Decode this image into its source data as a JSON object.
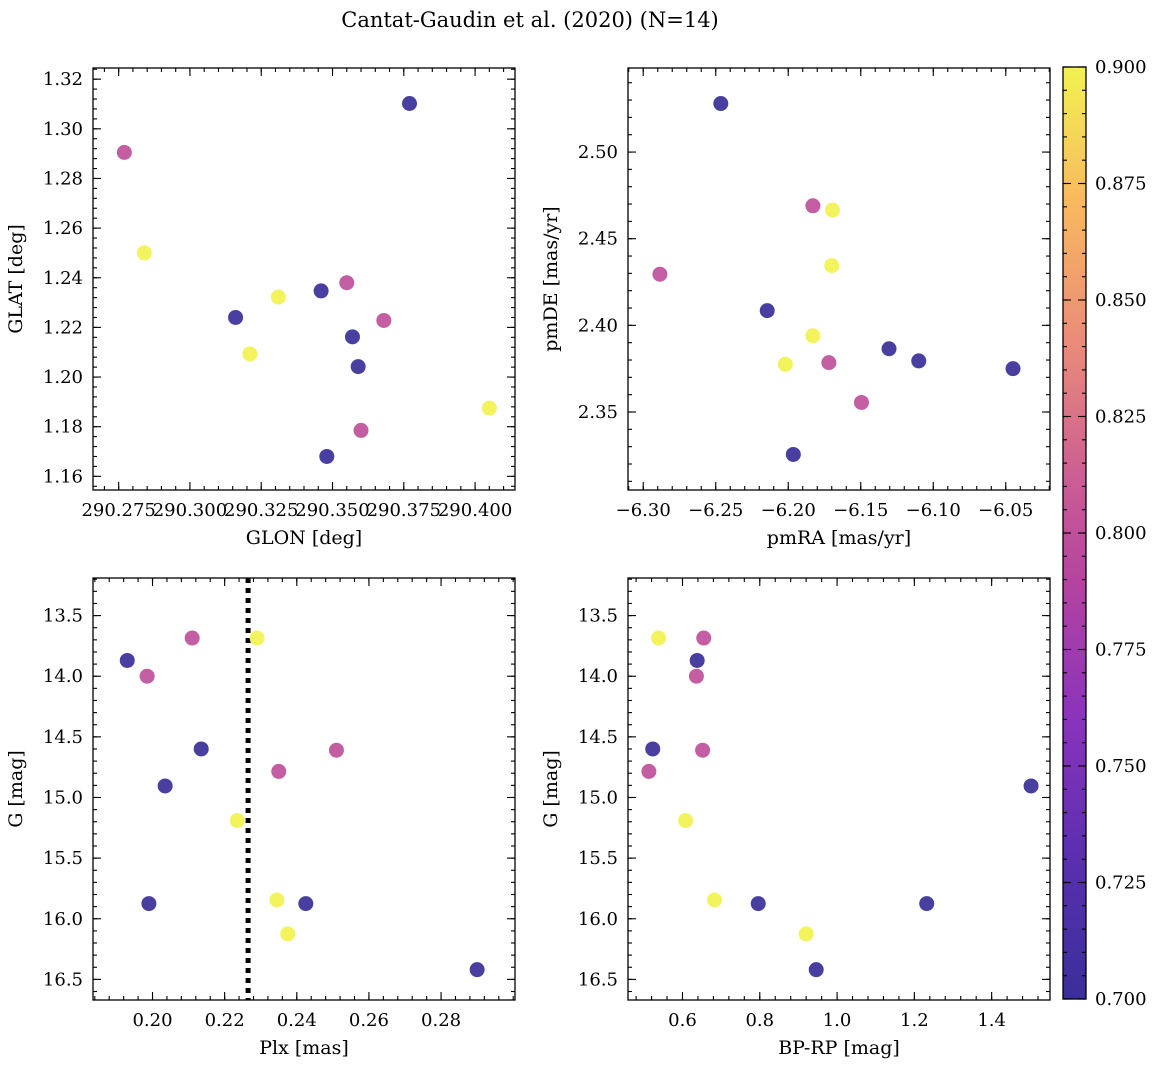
{
  "figure_title": "Cantat-Gaudin et al. (2020) (N=14)",
  "colorbar": {
    "min": 0.7,
    "max": 0.9,
    "ticks": [
      0.7,
      0.725,
      0.75,
      0.775,
      0.8,
      0.825,
      0.85,
      0.875,
      0.9
    ],
    "tick_labels": [
      "0.700",
      "0.725",
      "0.750",
      "0.775",
      "0.800",
      "0.825",
      "0.850",
      "0.875",
      "0.900"
    ],
    "colormap": "plasma",
    "range_colors": [
      "#3a2f99",
      "#7a2fbc",
      "#a43bb5",
      "#c95b95",
      "#e98a7a",
      "#f8b760",
      "#f2f250"
    ]
  },
  "chart_data": [
    {
      "type": "scatter",
      "title": "",
      "xlabel": "GLON [deg]",
      "ylabel": "GLAT [deg]",
      "xlim": [
        290.266,
        290.414
      ],
      "ylim": [
        1.1545,
        1.3245
      ],
      "xticks": [
        290.275,
        290.3,
        290.325,
        290.35,
        290.375,
        290.4
      ],
      "xtick_labels": [
        "290.275",
        "290.300",
        "290.325",
        "290.350",
        "290.375",
        "290.400"
      ],
      "yticks": [
        1.16,
        1.18,
        1.2,
        1.22,
        1.24,
        1.26,
        1.28,
        1.3,
        1.32
      ],
      "ytick_labels": [
        "1.16",
        "1.18",
        "1.20",
        "1.22",
        "1.24",
        "1.26",
        "1.28",
        "1.30",
        "1.32"
      ],
      "points": [
        {
          "x": 290.277,
          "y": 1.2905,
          "c": 0.8
        },
        {
          "x": 290.284,
          "y": 1.25,
          "c": 0.9
        },
        {
          "x": 290.316,
          "y": 1.224,
          "c": 0.7
        },
        {
          "x": 290.321,
          "y": 1.2093,
          "c": 0.9
        },
        {
          "x": 290.331,
          "y": 1.2322,
          "c": 0.9
        },
        {
          "x": 290.346,
          "y": 1.2347,
          "c": 0.7
        },
        {
          "x": 290.355,
          "y": 1.238,
          "c": 0.8
        },
        {
          "x": 290.348,
          "y": 1.168,
          "c": 0.7
        },
        {
          "x": 290.357,
          "y": 1.2162,
          "c": 0.7
        },
        {
          "x": 290.359,
          "y": 1.2042,
          "c": 0.7
        },
        {
          "x": 290.36,
          "y": 1.1785,
          "c": 0.8
        },
        {
          "x": 290.368,
          "y": 1.2228,
          "c": 0.8
        },
        {
          "x": 290.377,
          "y": 1.3102,
          "c": 0.7
        },
        {
          "x": 290.405,
          "y": 1.1875,
          "c": 0.9
        }
      ]
    },
    {
      "type": "scatter",
      "title": "",
      "xlabel": "pmRA [mas/yr]",
      "ylabel": "pmDE [mas/yr]",
      "xlim": [
        -6.3105,
        -6.0195
      ],
      "ylim": [
        2.305,
        2.5485
      ],
      "xticks": [
        -6.3,
        -6.25,
        -6.2,
        -6.15,
        -6.1,
        -6.05
      ],
      "xtick_labels": [
        "−6.30",
        "−6.25",
        "−6.20",
        "−6.15",
        "−6.10",
        "−6.05"
      ],
      "yticks": [
        2.35,
        2.4,
        2.45,
        2.5
      ],
      "ytick_labels": [
        "2.35",
        "2.40",
        "2.45",
        "2.50"
      ],
      "points": [
        {
          "x": -6.2465,
          "y": 2.528,
          "c": 0.7
        },
        {
          "x": -6.2885,
          "y": 2.4295,
          "c": 0.8
        },
        {
          "x": -6.2145,
          "y": 2.4085,
          "c": 0.7
        },
        {
          "x": -6.183,
          "y": 2.469,
          "c": 0.8
        },
        {
          "x": -6.1695,
          "y": 2.4665,
          "c": 0.9
        },
        {
          "x": -6.17,
          "y": 2.4345,
          "c": 0.9
        },
        {
          "x": -6.183,
          "y": 2.394,
          "c": 0.9
        },
        {
          "x": -6.202,
          "y": 2.3775,
          "c": 0.9
        },
        {
          "x": -6.172,
          "y": 2.3785,
          "c": 0.8
        },
        {
          "x": -6.1495,
          "y": 2.3555,
          "c": 0.8
        },
        {
          "x": -6.1305,
          "y": 2.3865,
          "c": 0.7
        },
        {
          "x": -6.11,
          "y": 2.3795,
          "c": 0.7
        },
        {
          "x": -6.1965,
          "y": 2.3255,
          "c": 0.7
        },
        {
          "x": -6.045,
          "y": 2.375,
          "c": 0.7
        }
      ]
    },
    {
      "type": "scatter",
      "title": "",
      "xlabel": "Plx [mas]",
      "ylabel": "G [mag]",
      "xlim": [
        0.1835,
        0.3005
      ],
      "ylim": [
        16.67,
        13.19
      ],
      "xticks": [
        0.2,
        0.22,
        0.24,
        0.26,
        0.28
      ],
      "xtick_labels": [
        "0.20",
        "0.22",
        "0.24",
        "0.26",
        "0.28"
      ],
      "yticks": [
        13.5,
        14.0,
        14.5,
        15.0,
        15.5,
        16.0,
        16.5
      ],
      "ytick_labels": [
        "13.5",
        "14.0",
        "14.5",
        "15.0",
        "15.5",
        "16.0",
        "16.5"
      ],
      "vline": {
        "x": 0.2265,
        "style": "dotted"
      },
      "points": [
        {
          "x": 0.193,
          "y": 13.87,
          "c": 0.7
        },
        {
          "x": 0.1985,
          "y": 14.0,
          "c": 0.8
        },
        {
          "x": 0.211,
          "y": 13.685,
          "c": 0.8
        },
        {
          "x": 0.229,
          "y": 13.685,
          "c": 0.9
        },
        {
          "x": 0.2135,
          "y": 14.6,
          "c": 0.7
        },
        {
          "x": 0.2035,
          "y": 14.905,
          "c": 0.7
        },
        {
          "x": 0.235,
          "y": 14.785,
          "c": 0.8
        },
        {
          "x": 0.251,
          "y": 14.61,
          "c": 0.8
        },
        {
          "x": 0.2235,
          "y": 15.19,
          "c": 0.9
        },
        {
          "x": 0.199,
          "y": 15.875,
          "c": 0.7
        },
        {
          "x": 0.2345,
          "y": 15.845,
          "c": 0.9
        },
        {
          "x": 0.2425,
          "y": 15.875,
          "c": 0.7
        },
        {
          "x": 0.2375,
          "y": 16.125,
          "c": 0.9
        },
        {
          "x": 0.29,
          "y": 16.42,
          "c": 0.7
        }
      ]
    },
    {
      "type": "scatter",
      "title": "",
      "xlabel": "BP-RP [mag]",
      "ylabel": "G [mag]",
      "xlim": [
        0.459,
        1.551
      ],
      "ylim": [
        16.67,
        13.19
      ],
      "xticks": [
        0.6,
        0.8,
        1.0,
        1.2,
        1.4
      ],
      "xtick_labels": [
        "0.6",
        "0.8",
        "1.0",
        "1.2",
        "1.4"
      ],
      "yticks": [
        13.5,
        14.0,
        14.5,
        15.0,
        15.5,
        16.0,
        16.5
      ],
      "ytick_labels": [
        "13.5",
        "14.0",
        "14.5",
        "15.0",
        "15.5",
        "16.0",
        "16.5"
      ],
      "points": [
        {
          "x": 0.538,
          "y": 13.685,
          "c": 0.9
        },
        {
          "x": 0.655,
          "y": 13.685,
          "c": 0.8
        },
        {
          "x": 0.638,
          "y": 13.87,
          "c": 0.7
        },
        {
          "x": 0.636,
          "y": 14.0,
          "c": 0.8
        },
        {
          "x": 0.523,
          "y": 14.6,
          "c": 0.7
        },
        {
          "x": 0.652,
          "y": 14.61,
          "c": 0.8
        },
        {
          "x": 0.513,
          "y": 14.785,
          "c": 0.8
        },
        {
          "x": 1.502,
          "y": 14.905,
          "c": 0.7
        },
        {
          "x": 0.608,
          "y": 15.19,
          "c": 0.9
        },
        {
          "x": 0.683,
          "y": 15.845,
          "c": 0.9
        },
        {
          "x": 0.796,
          "y": 15.875,
          "c": 0.7
        },
        {
          "x": 1.232,
          "y": 15.875,
          "c": 0.7
        },
        {
          "x": 0.92,
          "y": 16.125,
          "c": 0.9
        },
        {
          "x": 0.946,
          "y": 16.42,
          "c": 0.7
        }
      ]
    }
  ]
}
